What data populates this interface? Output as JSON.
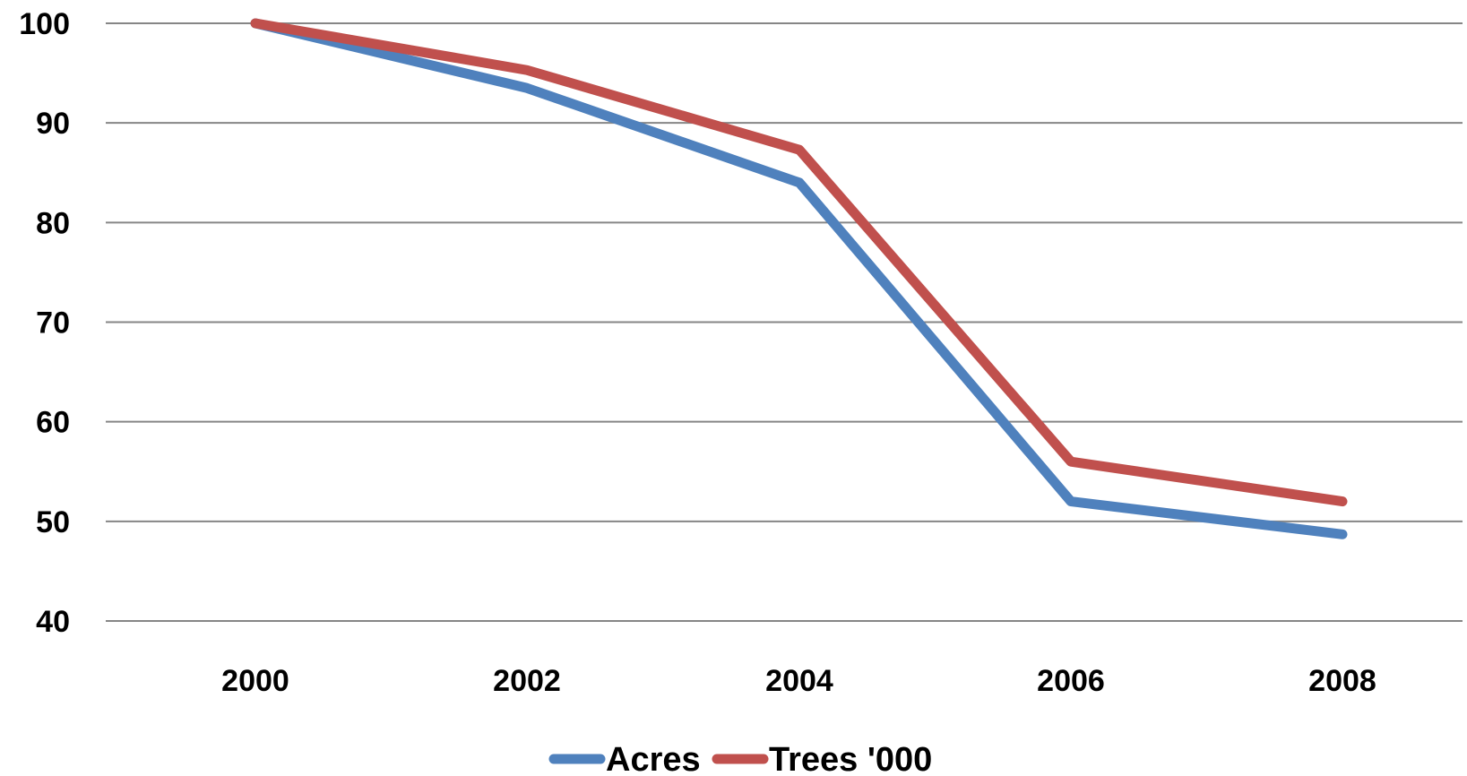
{
  "chart_data": {
    "type": "line",
    "title": "",
    "xlabel": "",
    "ylabel": "",
    "categories": [
      "2000",
      "2002",
      "2004",
      "2006",
      "2008"
    ],
    "series": [
      {
        "name": "Acres",
        "values": [
          100,
          93.5,
          84,
          52,
          48.7
        ],
        "color": "#4f81bd"
      },
      {
        "name": "Trees '000",
        "values": [
          100,
          95.3,
          87.3,
          56,
          52
        ],
        "color": "#c0504d"
      }
    ],
    "ylim": [
      40,
      100
    ],
    "yticks": [
      100,
      90,
      80,
      70,
      60,
      50,
      40
    ],
    "grid": true,
    "legend_position": "bottom"
  }
}
